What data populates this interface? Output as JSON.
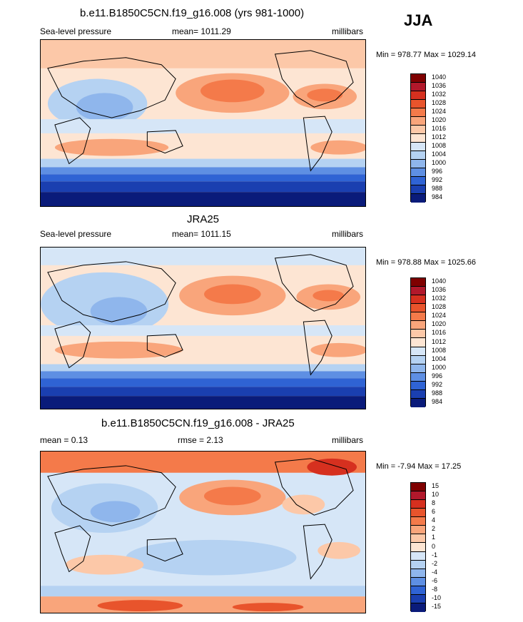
{
  "season": "JJA",
  "panels": [
    {
      "title": "b.e11.B1850C5CN.f19_g16.008 (yrs 981-1000)",
      "left_label": "Sea-level pressure",
      "mean_label": "mean= 1011.29",
      "units": "millibars",
      "minmax": "Min = 978.77 Max = 1029.14",
      "colorbar": [
        "1040",
        "1036",
        "1032",
        "1028",
        "1024",
        "1020",
        "1016",
        "1012",
        "1008",
        "1004",
        "1000",
        "996",
        "992",
        "988",
        "984"
      ]
    },
    {
      "title": "JRA25",
      "left_label": "Sea-level pressure",
      "mean_label": "mean= 1011.15",
      "units": "millibars",
      "minmax": "Min = 978.88 Max = 1025.66",
      "colorbar": [
        "1040",
        "1036",
        "1032",
        "1028",
        "1024",
        "1020",
        "1016",
        "1012",
        "1008",
        "1004",
        "1000",
        "996",
        "992",
        "988",
        "984"
      ]
    },
    {
      "title": "b.e11.B1850C5CN.f19_g16.008 - JRA25",
      "left_label": "mean =   0.13",
      "mean_label": "rmse =   2.13",
      "units": "millibars",
      "minmax": "Min =  -7.94 Max =  17.25",
      "colorbar": [
        "15",
        "10",
        "8",
        "6",
        "4",
        "2",
        "1",
        "0",
        "-1",
        "-2",
        "-4",
        "-6",
        "-8",
        "-10",
        "-15"
      ]
    }
  ],
  "colors": {
    "levels": [
      "#7f0000",
      "#b2182b",
      "#d6301f",
      "#e8542c",
      "#f47a4a",
      "#f9a57b",
      "#fcc8a8",
      "#fde5d3",
      "#d6e6f7",
      "#b5d2f2",
      "#8fb6ec",
      "#5e8fe3",
      "#2f63d4",
      "#1a3fb0",
      "#0a1b7a"
    ]
  }
}
